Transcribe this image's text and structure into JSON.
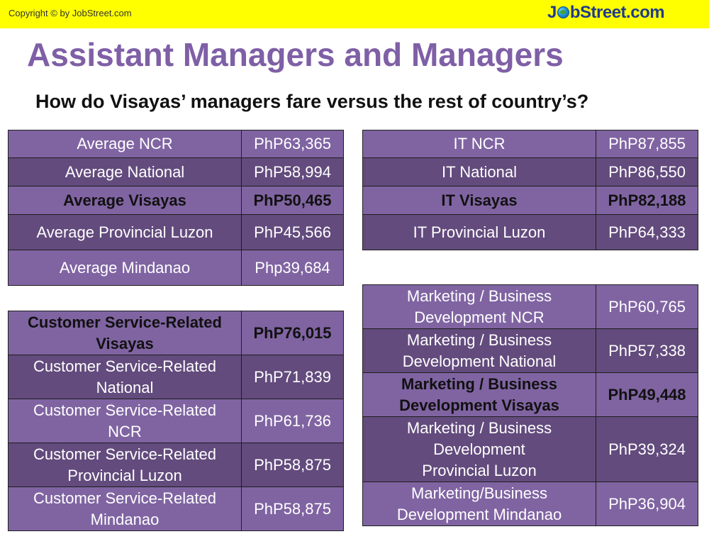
{
  "header": {
    "copyright": "Copyright © by JobStreet.com",
    "logo": {
      "pre": "J",
      "post": "bStreet.com"
    }
  },
  "title": "Assistant Managers and Managers",
  "subtitle": "How do Visayas’ managers fare versus the rest of country’s?",
  "colors": {
    "topbar": "#ffff00",
    "title": "#7f5fa6",
    "row_light": "#8064a2",
    "row_dark": "#634b7d"
  },
  "tables": {
    "average": [
      {
        "label": "Average NCR",
        "value": "PhP63,365"
      },
      {
        "label": "Average National",
        "value": "PhP58,994"
      },
      {
        "label": "Average Visayas",
        "value": "PhP50,465"
      },
      {
        "label": "Average Provincial Luzon",
        "value": "PhP45,566"
      },
      {
        "label": "Average Mindanao",
        "value": "Php39,684"
      }
    ],
    "it": [
      {
        "label": "IT NCR",
        "value": "PhP87,855"
      },
      {
        "label": "IT National",
        "value": "PhP86,550"
      },
      {
        "label": "IT Visayas",
        "value": "PhP82,188"
      },
      {
        "label": "IT Provincial Luzon",
        "value": "PhP64,333"
      }
    ],
    "customer_service": [
      {
        "label_lines": [
          "Customer Service-Related",
          "Visayas"
        ],
        "value": "PhP76,015"
      },
      {
        "label_lines": [
          "Customer Service-Related",
          "National"
        ],
        "value": "PhP71,839"
      },
      {
        "label_lines": [
          "Customer Service-Related",
          "NCR"
        ],
        "value": "PhP61,736"
      },
      {
        "label_lines": [
          "Customer Service-Related",
          "Provincial Luzon"
        ],
        "value": "PhP58,875"
      },
      {
        "label_lines": [
          "Customer Service-Related",
          "Mindanao"
        ],
        "value": "PhP58,875"
      }
    ],
    "marketing": [
      {
        "label_lines": [
          "Marketing / Business",
          "Development NCR"
        ],
        "value": "PhP60,765"
      },
      {
        "label_lines": [
          "Marketing / Business",
          "Development National"
        ],
        "value": "PhP57,338"
      },
      {
        "label_lines": [
          "Marketing / Business",
          "Development Visayas"
        ],
        "value": "PhP49,448"
      },
      {
        "label_lines": [
          "Marketing / Business",
          "Development",
          "Provincial Luzon"
        ],
        "value": "PhP39,324"
      },
      {
        "label_lines": [
          "Marketing/Business",
          "Development Mindanao"
        ],
        "value": "PhP36,904"
      }
    ]
  }
}
